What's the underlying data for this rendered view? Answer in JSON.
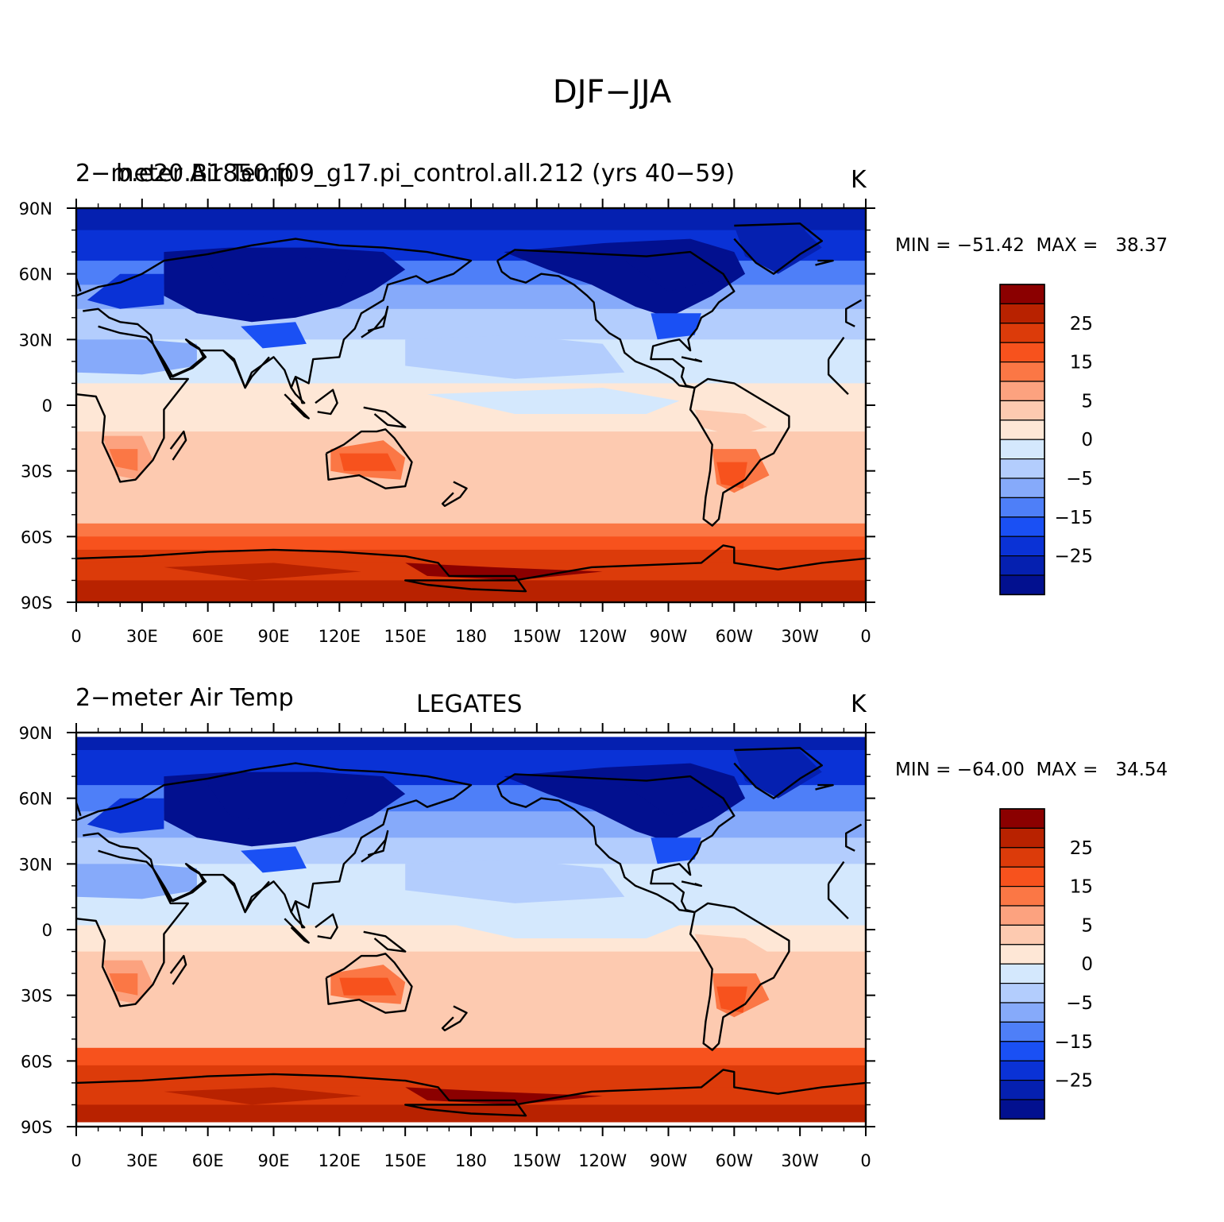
{
  "figure": {
    "title": "DJF−JJA"
  },
  "panels": [
    {
      "left_title": "2−meter Air Temp",
      "overlay_title": "b.e20.B1850.f09_g17.pi_control.all.212 (yrs 40−59)",
      "center_title": "",
      "units": "K",
      "min_max": "MIN = −51.42  MAX =   38.37"
    },
    {
      "left_title": "2−meter Air Temp",
      "overlay_title": "",
      "center_title": "LEGATES",
      "units": "K",
      "min_max": "MIN = −64.00  MAX =   34.54"
    }
  ],
  "axes": {
    "y_ticks": [
      "90N",
      "60N",
      "30N",
      "0",
      "30S",
      "60S",
      "90S"
    ],
    "x_ticks": [
      "0",
      "30E",
      "60E",
      "90E",
      "120E",
      "150E",
      "180",
      "150W",
      "120W",
      "90W",
      "60W",
      "30W",
      "0"
    ]
  },
  "colorbar": {
    "labels": [
      "25",
      "15",
      "5",
      "0",
      "−5",
      "−15",
      "−25"
    ],
    "colors": [
      "#8b0000",
      "#b82200",
      "#dc3b0a",
      "#f7521d",
      "#fb7745",
      "#fca27f",
      "#fdcab0",
      "#fee7d6",
      "#d4e8fd",
      "#b3cdfd",
      "#86aafa",
      "#4e7ff8",
      "#1a50f4",
      "#0a32d6",
      "#0520b0",
      "#02108f"
    ]
  },
  "chart_data": {
    "type": "heatmap",
    "title": "DJF−JJA",
    "xlabel": "",
    "ylabel": "",
    "x": [
      "0",
      "30E",
      "60E",
      "90E",
      "120E",
      "150E",
      "180",
      "150W",
      "120W",
      "90W",
      "60W",
      "30W",
      "0"
    ],
    "y": [
      "90N",
      "60N",
      "30N",
      "0",
      "30S",
      "60S",
      "90S"
    ],
    "xlim": [
      0,
      360
    ],
    "ylim": [
      -90,
      90
    ],
    "units": "K",
    "levels": [
      -30,
      -25,
      -20,
      -15,
      -10,
      -5,
      -2,
      0,
      2,
      5,
      10,
      15,
      20,
      25,
      30
    ],
    "panels": [
      {
        "title": "b.e20.B1850.f09_g17.pi_control.all.212 (yrs 40−59)",
        "variable": "2−meter Air Temp",
        "min": -51.42,
        "max": 38.37
      },
      {
        "title": "LEGATES",
        "variable": "2−meter Air Temp",
        "min": -64.0,
        "max": 34.54
      }
    ]
  }
}
